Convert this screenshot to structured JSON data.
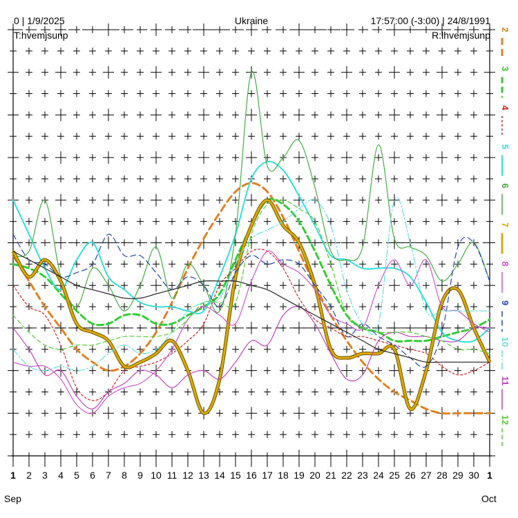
{
  "header": {
    "left": "0 | 1/9/2025",
    "center": "Ukraine",
    "right": "17:57:00 (-3:00) | 24/8/1991",
    "sub_left": "T:hvemjsunp",
    "sub_right": "R:lhvemjsunp"
  },
  "months": {
    "start": "Sep",
    "end": "Oct"
  },
  "chart_data": {
    "type": "line",
    "x_tick_labels": [
      "1",
      "2",
      "3",
      "4",
      "5",
      "6",
      "7",
      "8",
      "9",
      "10",
      "11",
      "12",
      "13",
      "14",
      "15",
      "16",
      "17",
      "18",
      "19",
      "20",
      "21",
      "22",
      "23",
      "24",
      "25",
      "26",
      "27",
      "28",
      "29",
      "30",
      "1"
    ],
    "xlim": [
      1,
      31
    ],
    "ylim": [
      2,
      12
    ],
    "y_reversed": true,
    "y_axis_side": "right",
    "grid": true,
    "legend": "right",
    "legend_labels": [
      "2",
      "3",
      "4",
      "5",
      "6",
      "7",
      "8",
      "9",
      "10",
      "11",
      "12"
    ],
    "x": [
      1,
      2,
      3,
      4,
      5,
      6,
      7,
      8,
      9,
      10,
      11,
      12,
      13,
      14,
      15,
      16,
      17,
      18,
      19,
      20,
      21,
      22,
      23,
      24,
      25,
      26,
      27,
      28,
      29,
      30,
      31
    ],
    "series": [
      {
        "name": "2",
        "color": "#e08020",
        "dash": "10,6",
        "width": 3,
        "values": [
          7.3,
          7.9,
          8.5,
          9.0,
          9.5,
          9.8,
          10.0,
          9.9,
          9.6,
          9.1,
          8.4,
          7.6,
          6.9,
          6.3,
          5.8,
          5.6,
          5.8,
          6.4,
          7.2,
          8.0,
          8.7,
          9.3,
          9.8,
          10.2,
          10.5,
          10.7,
          10.9,
          11.0,
          11.0,
          11.0,
          11.0
        ]
      },
      {
        "name": "3",
        "color": "#33cc33",
        "dash": "9,5",
        "width": 3,
        "values": [
          7.5,
          7.6,
          7.8,
          8.2,
          8.6,
          8.9,
          8.9,
          8.7,
          8.7,
          8.9,
          8.9,
          8.7,
          8.5,
          8.2,
          7.4,
          6.6,
          6.0,
          6.1,
          6.5,
          7.2,
          8.0,
          8.7,
          9.0,
          9.1,
          9.3,
          9.3,
          9.3,
          9.2,
          9.1,
          9.0,
          8.8
        ]
      },
      {
        "name": "4",
        "color": "#cc2222",
        "dash": "3,3",
        "width": 1.2,
        "values": [
          8.0,
          8.5,
          8.7,
          9.4,
          10.4,
          10.7,
          10.5,
          10.0,
          9.9,
          9.8,
          9.6,
          9.3,
          8.9,
          8.0,
          7.6,
          7.2,
          7.2,
          7.6,
          8.3,
          8.8,
          9.0,
          9.2,
          9.2,
          9.3,
          9.4,
          9.5,
          9.6,
          9.9,
          10.1,
          10.0,
          9.8
        ]
      },
      {
        "name": "5",
        "color": "#33dddd",
        "dash": "",
        "width": 2,
        "values": [
          6.0,
          6.8,
          7.6,
          8.1,
          7.4,
          7.0,
          7.8,
          8.1,
          8.4,
          8.5,
          8.5,
          8.6,
          8.6,
          7.8,
          6.8,
          5.5,
          5.1,
          5.3,
          5.9,
          6.6,
          7.3,
          7.4,
          7.6,
          7.6,
          7.6,
          7.8,
          8.4,
          9.1,
          9.3,
          9.3,
          9.0
        ]
      },
      {
        "name": "6",
        "color": "#44aa44",
        "dash": "",
        "width": 1.2,
        "values": [
          7.3,
          7.2,
          6.0,
          7.8,
          8.5,
          7.6,
          8.0,
          8.6,
          8.0,
          7.1,
          8.3,
          7.5,
          8.0,
          8.6,
          6.8,
          3.0,
          5.2,
          5.0,
          4.6,
          5.7,
          7.2,
          7.4,
          7.1,
          4.7,
          6.9,
          7.1,
          7.3,
          7.9,
          7.5,
          7.0,
          7.9
        ]
      },
      {
        "name": "7",
        "color": "#ddaa00",
        "dash": "",
        "width": 3,
        "values": [
          7.2,
          7.8,
          7.4,
          7.9,
          8.9,
          9.1,
          9.3,
          9.9,
          9.8,
          9.6,
          9.3,
          10.0,
          11.0,
          10.2,
          7.8,
          6.6,
          6.0,
          6.6,
          7.0,
          8.0,
          9.5,
          9.7,
          9.6,
          9.6,
          9.5,
          10.9,
          10.0,
          8.4,
          8.1,
          9.0,
          9.8
        ]
      },
      {
        "name": "8",
        "color": "#cc55cc",
        "dash": "",
        "width": 1.2,
        "values": [
          9.8,
          9.9,
          9.9,
          10.2,
          10.8,
          11.0,
          10.6,
          10.4,
          10.3,
          10.0,
          9.5,
          8.8,
          8.5,
          8.7,
          8.9,
          7.9,
          7.2,
          7.5,
          7.7,
          8.1,
          8.7,
          8.9,
          9.0,
          8.0,
          7.4,
          8.0,
          7.4,
          8.5,
          8.6,
          8.9,
          9.1
        ]
      },
      {
        "name": "9",
        "color": "#2244aa",
        "dash": "8,5",
        "width": 1.2,
        "values": [
          6.8,
          7.4,
          7.5,
          7.8,
          7.7,
          7.5,
          6.8,
          7.3,
          7.3,
          7.7,
          8.1,
          7.8,
          8.0,
          8.5,
          7.7,
          7.3,
          7.5,
          7.4,
          7.5,
          8.0,
          8.5,
          9.2,
          8.9,
          9.2,
          9.4,
          9.7,
          9.9,
          9.1,
          7.1,
          7.0,
          7.9
        ]
      },
      {
        "name": "10",
        "color": "#66dddd",
        "dash": "10,3,2,3",
        "width": 1.2,
        "values": [
          9.5,
          9.9,
          10.0,
          9.9,
          10.0,
          9.9,
          9.6,
          9.4,
          9.6,
          9.5,
          9.1,
          8.6,
          8.4,
          8.3,
          7.5,
          6.9,
          6.7,
          6.5,
          6.2,
          6.0,
          6.6,
          8.1,
          8.9,
          8.9,
          6.0,
          7.0,
          8.6,
          8.6,
          8.6,
          8.6,
          8.6
        ]
      },
      {
        "name": "11",
        "color": "#bb44bb",
        "dash": "",
        "width": 1.2,
        "values": [
          9.0,
          9.5,
          10.1,
          10.0,
          10.6,
          10.9,
          10.5,
          10.3,
          10.0,
          10.1,
          10.4,
          10.1,
          10.0,
          10.2,
          9.8,
          9.3,
          9.4,
          8.7,
          8.5,
          8.9,
          9.6,
          10.2,
          10.1,
          9.3,
          9.1,
          9.2,
          9.2,
          9.3,
          9.3,
          9.0,
          9.0
        ]
      },
      {
        "name": "12",
        "color": "#55cc33",
        "dash": "6,4",
        "width": 1.2,
        "values": [
          8.7,
          9.1,
          9.4,
          9.5,
          9.4,
          9.4,
          9.3,
          9.2,
          9.2,
          9.2,
          9.1,
          8.8,
          8.4,
          8.4,
          8.4,
          6.8,
          6.1,
          6.0,
          6.2,
          6.5,
          7.5,
          8.7,
          9.0,
          9.1,
          9.1,
          9.1,
          9.2,
          9.3,
          9.5,
          9.5,
          9.6
        ]
      },
      {
        "name": "",
        "color": "#222222",
        "dash": "",
        "width": 1.2,
        "values": [
          7.2,
          7.4,
          7.6,
          7.8,
          8.0,
          8.1,
          8.2,
          8.3,
          8.3,
          8.2,
          8.1,
          8.0,
          7.9,
          7.9,
          7.9,
          8.0,
          8.1,
          8.3,
          8.5,
          8.7,
          8.9,
          9.1,
          9.3,
          9.5,
          9.6,
          9.7,
          9.8,
          9.8,
          9.8,
          9.8,
          9.8
        ]
      }
    ]
  }
}
